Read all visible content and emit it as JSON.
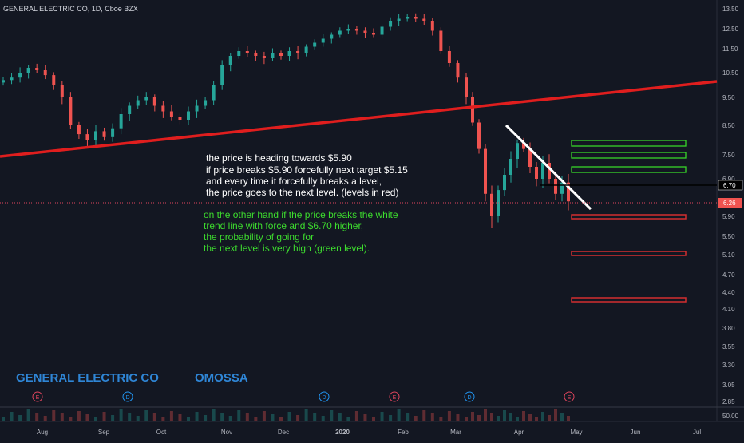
{
  "header": {
    "symbol_line": "GENERAL ELECTRIC CO, 1D, Cboe BZX"
  },
  "watermark": {
    "company": "GENERAL ELECTRIC CO",
    "author": "OMOSSA"
  },
  "price_axis": {
    "labels": [
      "13.50",
      "12.50",
      "11.50",
      "10.50",
      "9.50",
      "8.50",
      "7.50",
      "6.90",
      "5.90",
      "5.50",
      "5.10",
      "4.70",
      "4.40",
      "4.10",
      "3.80",
      "3.55",
      "3.30",
      "3.05",
      "2.85"
    ],
    "current_price_label": "6.70",
    "last_close_label": "6.26",
    "volume_label": "50.00"
  },
  "time_axis": {
    "labels": [
      "Aug",
      "Sep",
      "Oct",
      "Nov",
      "Dec",
      "2020",
      "Feb",
      "Mar",
      "Apr",
      "May",
      "Jun",
      "Jul"
    ]
  },
  "events": [
    {
      "type": "E",
      "color": "#e0455d"
    },
    {
      "type": "D",
      "color": "#2196f3"
    },
    {
      "type": "D",
      "color": "#2196f3"
    },
    {
      "type": "E",
      "color": "#e0455d"
    },
    {
      "type": "D",
      "color": "#2196f3"
    },
    {
      "type": "E",
      "color": "#e0455d"
    }
  ],
  "annotations": {
    "white_text": [
      "the price is heading towards $5.90",
      "if price breaks $5.90 forcefully next target $5.15",
      "and every time it forcefully breaks a level,",
      "the price goes to the next level. (levels in red)"
    ],
    "green_text": [
      "on the other hand if the price breaks the white",
      "trend line with force and $6.70 higher,",
      "the probability of going for",
      "the next level is very high (green level)."
    ]
  },
  "colors": {
    "background": "#131722",
    "up_candle": "#26a69a",
    "down_candle": "#ef5350",
    "trend_red": "#e01e1e",
    "trend_white": "#ffffff",
    "green_level": "#37d428",
    "red_level": "#d32f2f",
    "annotation_green": "#3ddc2e",
    "watermark_blue": "#2f86d6"
  },
  "chart_data": {
    "type": "candlestick",
    "symbol": "GENERAL ELECTRIC CO",
    "interval": "1D",
    "exchange": "Cboe BZX",
    "y_range": [
      2.85,
      13.5
    ],
    "price_ticks": [
      13.5,
      12.5,
      11.5,
      10.5,
      9.5,
      8.5,
      7.5,
      6.9,
      5.9,
      5.5,
      5.1,
      4.7,
      4.4,
      4.1,
      3.8,
      3.55,
      3.3,
      3.05,
      2.85
    ],
    "current_price": 6.7,
    "last_close": 6.26,
    "approximate_closes": [
      10.2,
      10.3,
      10.5,
      10.7,
      10.6,
      10.4,
      10.0,
      9.5,
      8.5,
      8.2,
      8.0,
      8.3,
      8.1,
      8.4,
      8.9,
      9.2,
      9.4,
      9.5,
      9.2,
      9.0,
      8.8,
      8.7,
      9.0,
      9.2,
      9.4,
      10.0,
      10.8,
      11.2,
      11.4,
      11.3,
      11.2,
      11.1,
      11.3,
      11.2,
      11.4,
      11.3,
      11.6,
      11.8,
      12.0,
      12.2,
      12.4,
      12.5,
      12.4,
      12.3,
      12.2,
      12.6,
      12.9,
      13.0,
      13.1,
      13.0,
      12.9,
      12.4,
      11.4,
      10.9,
      10.3,
      9.5,
      8.6,
      7.7,
      6.5,
      5.9,
      6.6,
      7.0,
      7.4,
      7.9,
      7.7,
      7.2,
      6.9,
      7.3,
      6.9,
      6.5,
      6.8,
      6.3
    ],
    "trend_lines": [
      {
        "color": "red",
        "from": {
          "date": "Jul 2019",
          "price": 7.5
        },
        "to": {
          "date": "Jun 2020",
          "price": 10.0
        }
      },
      {
        "color": "white",
        "from": {
          "date": "Mar 2020",
          "price": 8.4
        },
        "to": {
          "date": "Apr 2020",
          "price": 6.3
        }
      }
    ],
    "horizontal_levels": [
      {
        "color": "green",
        "price": 7.9
      },
      {
        "color": "green",
        "price": 7.55
      },
      {
        "color": "green",
        "price": 7.1
      },
      {
        "color": "red",
        "price": 5.9
      },
      {
        "color": "red",
        "price": 5.15
      },
      {
        "color": "red",
        "price": 4.3
      }
    ],
    "reference_lines": [
      {
        "color": "black",
        "price": 6.7
      },
      {
        "color": "red-dotted",
        "price": 6.26
      }
    ]
  }
}
